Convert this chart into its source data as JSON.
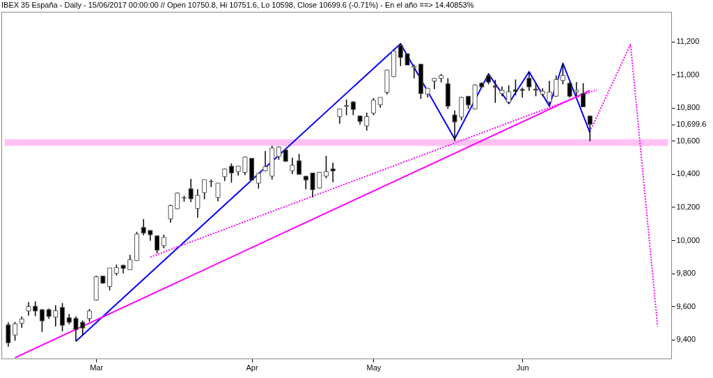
{
  "chart_data": {
    "type": "candlestick",
    "title": "IBEX 35 España - Daily - 15/06/2017 00:00:00 // Open 10750.8, Hi 10751.6, Lo 10598, Close 10699.6 (-0.71%) - En el año ==> 14.40853%",
    "categories": [
      null,
      null,
      null,
      null,
      null,
      null,
      null,
      null,
      null,
      null,
      null,
      null,
      null,
      "Mar",
      null,
      null,
      null,
      null,
      null,
      null,
      null,
      null,
      null,
      null,
      null,
      null,
      null,
      null,
      null,
      null,
      null,
      null,
      null,
      null,
      null,
      null,
      "Apr",
      null,
      null,
      null,
      null,
      null,
      null,
      null,
      null,
      null,
      null,
      null,
      null,
      null,
      null,
      null,
      null,
      null,
      "May",
      null,
      null,
      null,
      null,
      null,
      null,
      null,
      null,
      null,
      null,
      null,
      null,
      null,
      null,
      null,
      null,
      null,
      null,
      null,
      null,
      null,
      "Jun",
      null,
      null,
      null,
      null,
      null,
      null,
      null,
      null,
      null,
      null,
      null,
      null,
      null,
      null,
      null,
      null,
      null,
      null,
      null,
      null,
      null
    ],
    "ohlc": [
      [
        9488,
        9504,
        9356,
        9380
      ],
      [
        9427,
        9506,
        9393,
        9495
      ],
      [
        9498,
        9539,
        9471,
        9524
      ],
      [
        9572,
        9627,
        9544,
        9599
      ],
      [
        9601,
        9631,
        9541,
        9572
      ],
      [
        9580,
        9584,
        9446,
        9512
      ],
      [
        9580,
        9587,
        9526,
        9539
      ],
      [
        9535,
        9607,
        9479,
        9574
      ],
      [
        9594,
        9620,
        9449,
        9486
      ],
      [
        9532,
        9554,
        9492,
        9504
      ],
      [
        9528,
        9539,
        9389,
        9459
      ],
      [
        9504,
        9515,
        9425,
        9469
      ],
      [
        9527,
        9584,
        9508,
        9572
      ],
      [
        9638,
        9786,
        9634,
        9779
      ],
      [
        9783,
        9786,
        9737,
        9740
      ],
      [
        9720,
        9832,
        9696,
        9832
      ],
      [
        9800,
        9852,
        9786,
        9835
      ],
      [
        9849,
        9849,
        9799,
        9829
      ],
      [
        9821,
        9911,
        9821,
        9882
      ],
      [
        9877,
        10050,
        9875,
        10037
      ],
      [
        10077,
        10127,
        10030,
        10043
      ],
      [
        10059,
        10059,
        9997,
        10033
      ],
      [
        10026,
        10030,
        9920,
        9940
      ],
      [
        9967,
        10033,
        9951,
        10017
      ],
      [
        10129,
        10215,
        10106,
        10209
      ],
      [
        10190,
        10288,
        10188,
        10285
      ],
      [
        10255,
        10268,
        10233,
        10257
      ],
      [
        10311,
        10370,
        10231,
        10250
      ],
      [
        10192,
        10308,
        10136,
        10271
      ],
      [
        10287,
        10366,
        10247,
        10366
      ],
      [
        10354,
        10367,
        10321,
        10356
      ],
      [
        10258,
        10345,
        10235,
        10345
      ],
      [
        10384,
        10434,
        10358,
        10430
      ],
      [
        10447,
        10464,
        10348,
        10406
      ],
      [
        10414,
        10447,
        10390,
        10447
      ],
      [
        10410,
        10506,
        10394,
        10503
      ],
      [
        10495,
        10495,
        10363,
        10363
      ],
      [
        10345,
        10403,
        10312,
        10403
      ],
      [
        10420,
        10539,
        10416,
        10444
      ],
      [
        10387,
        10570,
        10367,
        10556
      ],
      [
        10506,
        10566,
        10486,
        10563
      ],
      [
        10546,
        10549,
        10476,
        10476
      ],
      [
        10420,
        10499,
        10400,
        10453
      ],
      [
        10480,
        10522,
        10398,
        10398
      ],
      [
        10387,
        10387,
        10308,
        10363
      ],
      [
        10406,
        10406,
        10259,
        10305
      ],
      [
        10315,
        10410,
        10312,
        10410
      ],
      [
        10387,
        10510,
        10374,
        10414
      ],
      [
        10431,
        10469,
        10350,
        10418
      ],
      [
        10747,
        10793,
        10704,
        10793
      ],
      [
        10813,
        10850,
        10755,
        10810
      ],
      [
        10836,
        10840,
        10755,
        10790
      ],
      [
        10751,
        10751,
        10698,
        10717
      ],
      [
        10691,
        10771,
        10662,
        10747
      ],
      [
        10768,
        10859,
        10755,
        10846
      ],
      [
        10819,
        10863,
        10800,
        10863
      ],
      [
        10894,
        11028,
        10880,
        11028
      ],
      [
        10989,
        11147,
        10986,
        11143
      ],
      [
        11177,
        11187,
        11052,
        11104
      ],
      [
        11127,
        11127,
        11058,
        11058
      ],
      [
        11044,
        11061,
        10978,
        11051
      ],
      [
        11064,
        11064,
        10854,
        10886
      ],
      [
        10883,
        10918,
        10863,
        10918
      ],
      [
        10962,
        10978,
        10913,
        10978
      ],
      [
        10978,
        11005,
        10953,
        10995
      ],
      [
        10946,
        10979,
        10794,
        10810
      ],
      [
        10757,
        10784,
        10599,
        10715
      ],
      [
        10744,
        10867,
        10724,
        10863
      ],
      [
        10870,
        10870,
        10794,
        10817
      ],
      [
        10793,
        10942,
        10790,
        10938
      ],
      [
        10949,
        10955,
        10922,
        10926
      ],
      [
        10993,
        11006,
        10942,
        10955
      ],
      [
        10932,
        10969,
        10830,
        10925
      ],
      [
        10886,
        10929,
        10870,
        10905
      ],
      [
        10834,
        10936,
        10823,
        10897
      ],
      [
        10909,
        10971,
        10876,
        10900
      ],
      [
        10912,
        10922,
        10863,
        10905
      ],
      [
        10979,
        11015,
        10903,
        10926
      ],
      [
        10913,
        10949,
        10870,
        10907
      ],
      [
        10883,
        10918,
        10870,
        10900
      ],
      [
        10836,
        10962,
        10823,
        10895
      ],
      [
        10870,
        10995,
        10866,
        10971
      ],
      [
        10965,
        11068,
        10942,
        10995
      ],
      [
        10949,
        10955,
        10863,
        10870
      ],
      [
        10896,
        10955,
        10870,
        10905
      ],
      [
        10886,
        10949,
        10804,
        10806
      ],
      [
        10750.8,
        10751.6,
        10598,
        10699.6
      ],
      null,
      null,
      null,
      null,
      null,
      null,
      null,
      null,
      null,
      null,
      null
    ],
    "series": [
      {
        "type": "line",
        "color": "#0000ff",
        "line_style": "solid",
        "values": [
          null,
          null,
          null,
          null,
          null,
          null,
          null,
          null,
          null,
          null,
          9389,
          null,
          null,
          null,
          null,
          null,
          null,
          null,
          null,
          null,
          null,
          null,
          null,
          null,
          null,
          null,
          null,
          null,
          null,
          null,
          null,
          null,
          null,
          null,
          null,
          null,
          null,
          null,
          null,
          null,
          null,
          null,
          null,
          null,
          null,
          null,
          null,
          null,
          null,
          null,
          null,
          null,
          null,
          null,
          null,
          null,
          null,
          null,
          11188,
          null,
          null,
          null,
          null,
          null,
          null,
          null,
          10612,
          null,
          null,
          null,
          null,
          11005,
          null,
          null,
          10827,
          null,
          null,
          11018,
          null,
          null,
          10810,
          null,
          11069,
          null,
          null,
          null,
          10650,
          null,
          null,
          null,
          null,
          null,
          null,
          null,
          null,
          null,
          null,
          null
        ]
      },
      {
        "type": "line",
        "color": "#ff00ff",
        "line_style": "solid",
        "values": [
          null,
          9290,
          null,
          null,
          null,
          null,
          null,
          null,
          null,
          null,
          null,
          null,
          null,
          null,
          null,
          null,
          null,
          null,
          null,
          null,
          null,
          null,
          null,
          null,
          null,
          null,
          null,
          null,
          null,
          null,
          null,
          null,
          null,
          null,
          null,
          null,
          null,
          null,
          null,
          null,
          null,
          null,
          null,
          null,
          null,
          null,
          null,
          null,
          null,
          null,
          null,
          null,
          null,
          null,
          null,
          null,
          null,
          null,
          null,
          null,
          null,
          null,
          null,
          null,
          null,
          null,
          null,
          null,
          null,
          null,
          null,
          null,
          null,
          null,
          null,
          null,
          null,
          null,
          null,
          null,
          null,
          null,
          null,
          null,
          null,
          null,
          10905,
          null,
          null,
          null,
          null,
          null,
          null,
          null,
          null,
          null,
          null,
          null
        ]
      },
      {
        "type": "line",
        "color": "#ff00ff",
        "line_style": "dotted",
        "values": [
          null,
          null,
          null,
          null,
          null,
          null,
          null,
          null,
          null,
          null,
          null,
          null,
          null,
          null,
          null,
          null,
          null,
          null,
          null,
          null,
          null,
          9898,
          null,
          null,
          null,
          null,
          null,
          null,
          null,
          null,
          null,
          null,
          null,
          null,
          null,
          null,
          null,
          null,
          null,
          null,
          null,
          null,
          null,
          null,
          null,
          null,
          null,
          null,
          null,
          null,
          null,
          null,
          null,
          null,
          null,
          null,
          null,
          null,
          null,
          null,
          null,
          null,
          null,
          null,
          null,
          null,
          null,
          null,
          null,
          null,
          null,
          null,
          null,
          null,
          null,
          null,
          null,
          null,
          null,
          null,
          null,
          null,
          null,
          null,
          null,
          null,
          null,
          10909,
          null,
          null,
          null,
          null,
          null,
          null,
          null,
          null,
          null,
          null
        ]
      },
      {
        "type": "line",
        "color": "#ff00ff",
        "line_style": "dotted",
        "values": [
          null,
          null,
          null,
          null,
          null,
          null,
          null,
          null,
          null,
          null,
          null,
          null,
          null,
          null,
          null,
          null,
          null,
          null,
          null,
          null,
          null,
          null,
          null,
          null,
          null,
          null,
          null,
          null,
          null,
          null,
          null,
          null,
          null,
          null,
          null,
          null,
          null,
          null,
          null,
          null,
          null,
          null,
          null,
          null,
          null,
          null,
          null,
          null,
          null,
          null,
          null,
          null,
          null,
          null,
          null,
          null,
          null,
          null,
          null,
          null,
          null,
          null,
          null,
          null,
          null,
          null,
          null,
          null,
          null,
          null,
          null,
          null,
          null,
          null,
          null,
          null,
          null,
          null,
          null,
          null,
          null,
          null,
          null,
          null,
          null,
          null,
          10657,
          null,
          null,
          null,
          null,
          null,
          11183,
          null,
          null,
          null,
          9480,
          null
        ]
      }
    ],
    "bands": [
      {
        "axis": "y",
        "from": 10572,
        "to": 10608,
        "color": "#ffc0f4"
      }
    ],
    "ylim": [
      9285,
      11380
    ],
    "yticks": [
      {
        "value": 9400,
        "label": "9,400"
      },
      {
        "value": 9600,
        "label": "9,600"
      },
      {
        "value": 9800,
        "label": "9,800"
      },
      {
        "value": 10000,
        "label": "10,000"
      },
      {
        "value": 10200,
        "label": "10,200"
      },
      {
        "value": 10400,
        "label": "10,400"
      },
      {
        "value": 10600,
        "label": "10,600"
      },
      {
        "value": 10699.6,
        "label": "10,699.6"
      },
      {
        "value": 10800,
        "label": "10,800"
      },
      {
        "value": 11000,
        "label": "11,000"
      },
      {
        "value": 11200,
        "label": "11,200"
      }
    ]
  }
}
